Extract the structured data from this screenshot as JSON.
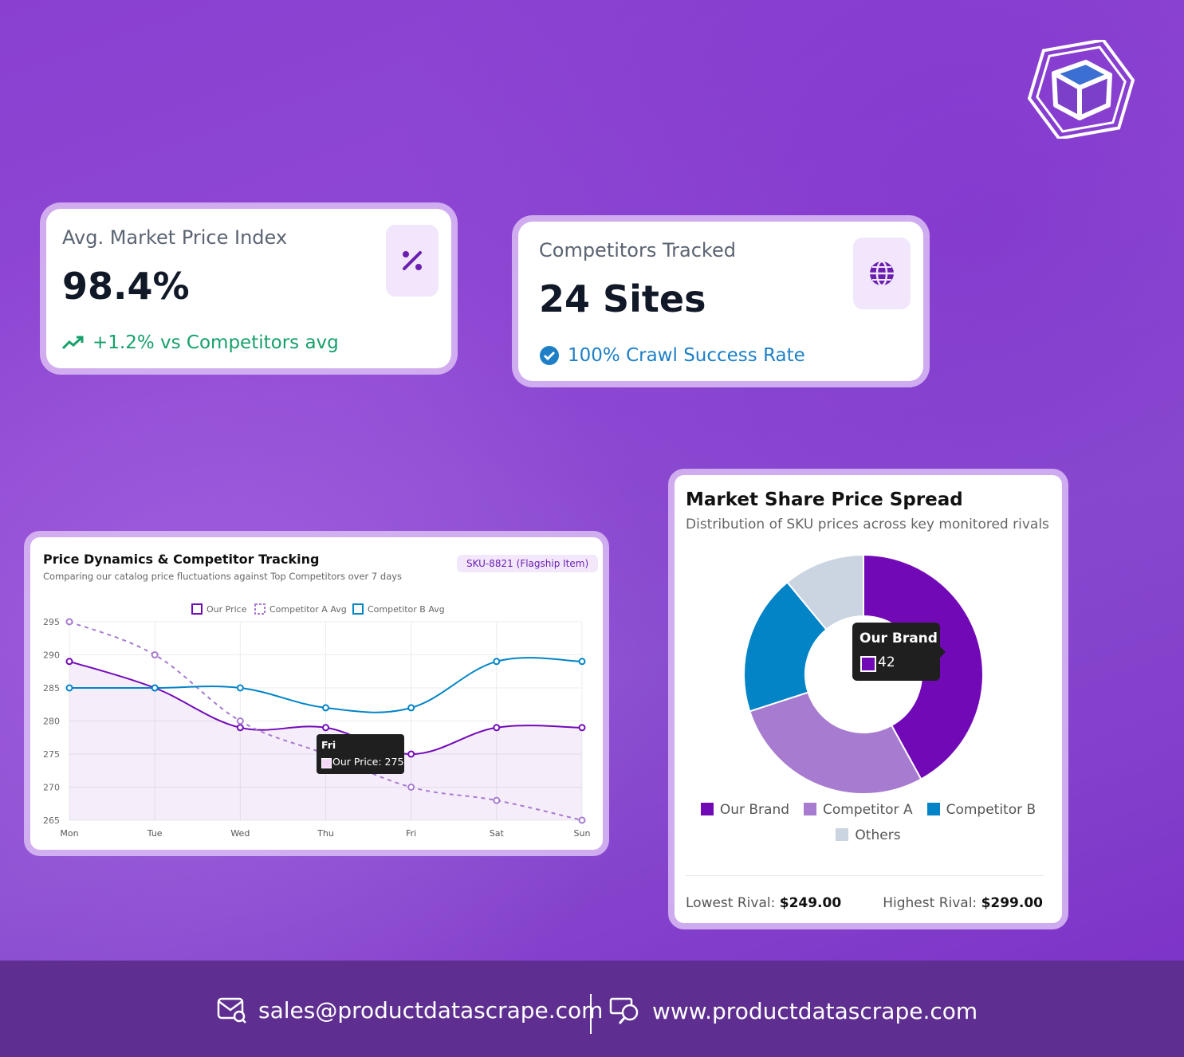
{
  "kpis": [
    {
      "label": "Avg. Market Price Index",
      "value": "98.4%",
      "foot": "+1.2% vs Competitors avg",
      "foot_color": "#16a06a",
      "icon": "percent-icon"
    },
    {
      "label": "Competitors Tracked",
      "value": "24 Sites",
      "foot": "100% Crawl Success Rate",
      "foot_color": "#1e7fc7",
      "icon": "globe-icon"
    }
  ],
  "line_card": {
    "title": "Price Dynamics & Competitor Tracking",
    "subtitle": "Comparing our catalog price fluctuations against Top Competitors over 7 days",
    "badge": "SKU-8821 (Flagship Item)",
    "tooltip_title": "Fri",
    "tooltip_body": "Our Price: 275"
  },
  "pie_card": {
    "title": "Market Share Price Spread",
    "subtitle": "Distribution of SKU prices across key monitored rivals",
    "tooltip_title": "Our Brand",
    "tooltip_value": "42",
    "lowest_label": "Lowest Rival:",
    "lowest_value": "$249.00",
    "highest_label": "Highest Rival:",
    "highest_value": "$299.00"
  },
  "footer": {
    "email": "sales@productdatascrape.com",
    "website": "www.productdatascrape.com"
  },
  "colors": {
    "our": "#7209b7",
    "compA": "#a77bd0",
    "compB": "#0284c7",
    "others": "#cbd5e1"
  },
  "chart_data": [
    {
      "type": "line",
      "title": "Price Dynamics & Competitor Tracking",
      "x": [
        "Mon",
        "Tue",
        "Wed",
        "Thu",
        "Fri",
        "Sat",
        "Sun"
      ],
      "ylim": [
        265,
        295
      ],
      "yticks": [
        295,
        290,
        285,
        280,
        275,
        270,
        265
      ],
      "grid": true,
      "legend": "top",
      "series": [
        {
          "name": "Our Price",
          "values": [
            289,
            285,
            279,
            279,
            275,
            279,
            279
          ],
          "color": "#7209b7"
        },
        {
          "name": "Competitor A Avg",
          "values": [
            295,
            290,
            280,
            275,
            270,
            268,
            265
          ],
          "color": "#a77bd0",
          "dashed": true
        },
        {
          "name": "Competitor B Avg",
          "values": [
            285,
            285,
            285,
            282,
            282,
            289,
            289
          ],
          "color": "#0284c7"
        }
      ]
    },
    {
      "type": "pie",
      "title": "Market Share Price Spread",
      "categories": [
        "Our Brand",
        "Competitor A",
        "Competitor B",
        "Others"
      ],
      "values": [
        42,
        28,
        19,
        11
      ],
      "colors": [
        "#7209b7",
        "#a77bd0",
        "#0284c7",
        "#cbd5e1"
      ],
      "legend": "bottom"
    }
  ]
}
